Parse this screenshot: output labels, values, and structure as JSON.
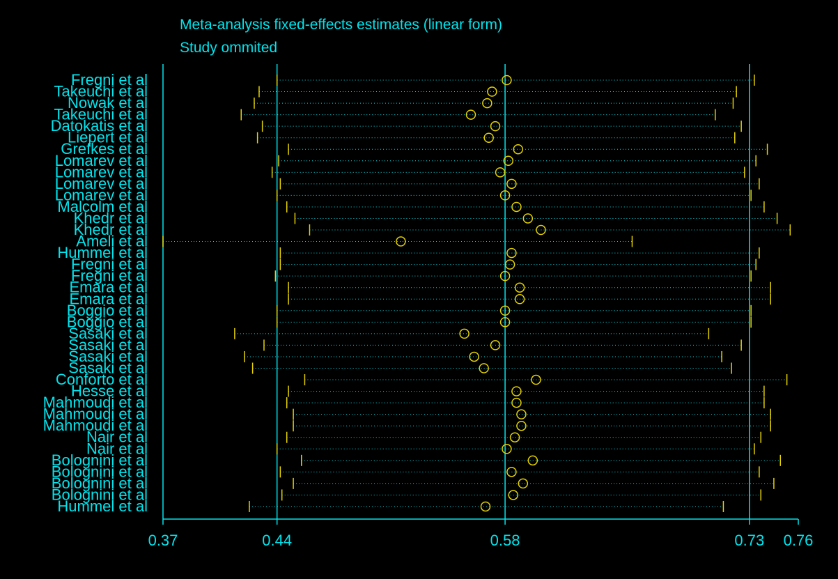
{
  "chart_data": {
    "type": "scatter",
    "title": "Meta-analysis fixed-effects estimates (linear form)",
    "subtitle": "Study ommited",
    "xticks": [
      0.37,
      0.44,
      0.58,
      0.73,
      0.76
    ],
    "xlim": [
      0.37,
      0.76
    ],
    "reference_lines": [
      0.44,
      0.58,
      0.73
    ],
    "colors": {
      "axis": "#00e5ee",
      "marker": "#e5d300",
      "ci_line": "#00e5ee"
    },
    "studies": [
      {
        "name": "Fregni et al",
        "estimate": 0.581,
        "lower": 0.44,
        "upper": 0.733
      },
      {
        "name": "Takeuchi et al",
        "estimate": 0.572,
        "lower": 0.429,
        "upper": 0.722
      },
      {
        "name": "Nowak et al",
        "estimate": 0.569,
        "lower": 0.426,
        "upper": 0.72
      },
      {
        "name": "Takeuchi et al",
        "estimate": 0.559,
        "lower": 0.418,
        "upper": 0.709
      },
      {
        "name": "Datokatis et al",
        "estimate": 0.574,
        "lower": 0.431,
        "upper": 0.725
      },
      {
        "name": "Liepert et al",
        "estimate": 0.57,
        "lower": 0.428,
        "upper": 0.721
      },
      {
        "name": "Grefkes et al",
        "estimate": 0.588,
        "lower": 0.447,
        "upper": 0.741
      },
      {
        "name": "Lomarev et al",
        "estimate": 0.582,
        "lower": 0.441,
        "upper": 0.734
      },
      {
        "name": "Lomarev et al",
        "estimate": 0.577,
        "lower": 0.437,
        "upper": 0.727
      },
      {
        "name": "Lomarev et al",
        "estimate": 0.584,
        "lower": 0.442,
        "upper": 0.736
      },
      {
        "name": "Lomarev et al",
        "estimate": 0.58,
        "lower": 0.44,
        "upper": 0.731
      },
      {
        "name": "Malcolm et al",
        "estimate": 0.587,
        "lower": 0.446,
        "upper": 0.739
      },
      {
        "name": "Khedr et al",
        "estimate": 0.594,
        "lower": 0.451,
        "upper": 0.747
      },
      {
        "name": "Khedr et al",
        "estimate": 0.602,
        "lower": 0.46,
        "upper": 0.755
      },
      {
        "name": "Ameli et al",
        "estimate": 0.516,
        "lower": 0.37,
        "upper": 0.658
      },
      {
        "name": "Hummel et al",
        "estimate": 0.584,
        "lower": 0.442,
        "upper": 0.736
      },
      {
        "name": "Fregni et al",
        "estimate": 0.583,
        "lower": 0.442,
        "upper": 0.734
      },
      {
        "name": "Fregni et al",
        "estimate": 0.58,
        "lower": 0.439,
        "upper": 0.731
      },
      {
        "name": "Emara et al",
        "estimate": 0.589,
        "lower": 0.447,
        "upper": 0.743
      },
      {
        "name": "Emara et al",
        "estimate": 0.589,
        "lower": 0.447,
        "upper": 0.743
      },
      {
        "name": "Boggio et al",
        "estimate": 0.58,
        "lower": 0.44,
        "upper": 0.731
      },
      {
        "name": "Boggio et al",
        "estimate": 0.58,
        "lower": 0.44,
        "upper": 0.731
      },
      {
        "name": "Sasaki et al",
        "estimate": 0.555,
        "lower": 0.414,
        "upper": 0.705
      },
      {
        "name": "Sasaki et al",
        "estimate": 0.574,
        "lower": 0.432,
        "upper": 0.725
      },
      {
        "name": "Sasaki et al",
        "estimate": 0.561,
        "lower": 0.42,
        "upper": 0.713
      },
      {
        "name": "Sasaki et al",
        "estimate": 0.567,
        "lower": 0.425,
        "upper": 0.719
      },
      {
        "name": "Conforto et al",
        "estimate": 0.599,
        "lower": 0.457,
        "upper": 0.753
      },
      {
        "name": "Hesse et al",
        "estimate": 0.587,
        "lower": 0.447,
        "upper": 0.739
      },
      {
        "name": "Mahmoudi et al",
        "estimate": 0.587,
        "lower": 0.446,
        "upper": 0.739
      },
      {
        "name": "Mahmoudi et al",
        "estimate": 0.59,
        "lower": 0.45,
        "upper": 0.743
      },
      {
        "name": "Mahmoudi et al",
        "estimate": 0.59,
        "lower": 0.45,
        "upper": 0.743
      },
      {
        "name": "Nair et al",
        "estimate": 0.586,
        "lower": 0.446,
        "upper": 0.737
      },
      {
        "name": "Nair et al",
        "estimate": 0.581,
        "lower": 0.44,
        "upper": 0.733
      },
      {
        "name": "Bolognini et al",
        "estimate": 0.597,
        "lower": 0.455,
        "upper": 0.749
      },
      {
        "name": "Bolognini et al",
        "estimate": 0.584,
        "lower": 0.442,
        "upper": 0.736
      },
      {
        "name": "Bolognini et al",
        "estimate": 0.591,
        "lower": 0.45,
        "upper": 0.745
      },
      {
        "name": "Bolognini et al",
        "estimate": 0.585,
        "lower": 0.443,
        "upper": 0.737
      },
      {
        "name": "Hummel et al",
        "estimate": 0.568,
        "lower": 0.423,
        "upper": 0.714
      }
    ]
  }
}
